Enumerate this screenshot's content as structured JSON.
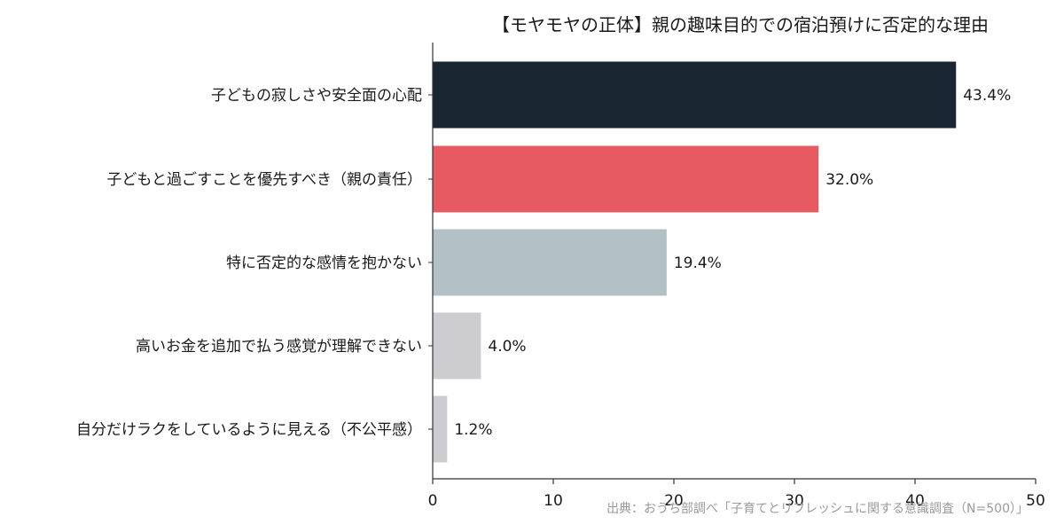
{
  "chart_data": {
    "type": "bar",
    "orientation": "horizontal",
    "title": "【モヤモヤの正体】親の趣味目的での宿泊預けに否定的な理由",
    "categories": [
      "子どもの寂しさや安全面の心配",
      "子どもと過ごすことを優先すべき（親の責任）",
      "特に否定的な感情を抱かない",
      "高いお金を追加で払う感覚が理解できない",
      "自分だけラクをしているように見える（不公平感）"
    ],
    "values": [
      43.4,
      32.0,
      19.4,
      4.0,
      1.2
    ],
    "value_labels": [
      "43.4%",
      "32.0%",
      "19.4%",
      "4.0%",
      "1.2%"
    ],
    "colors": [
      "#1b2633",
      "#e75a61",
      "#b2c1c6",
      "#cdcdd0",
      "#cdcdd0"
    ],
    "xlim": [
      0,
      50
    ],
    "xticks": [
      0,
      10,
      20,
      30,
      40,
      50
    ],
    "xlabel": "",
    "ylabel": "",
    "grid": false,
    "legend": "none",
    "source": "出典：おうち部調べ「子育てとリフレッシュに関する意識調査（N=500）」"
  }
}
